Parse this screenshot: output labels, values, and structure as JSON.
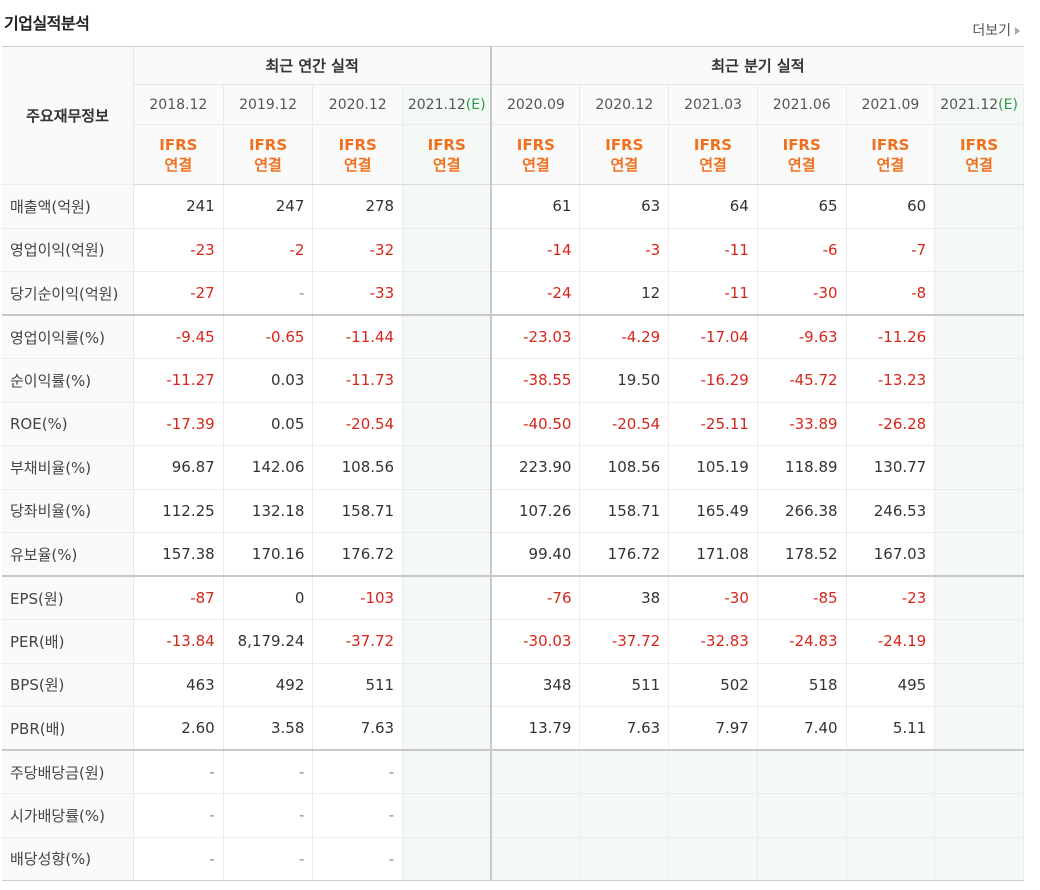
{
  "title": "기업실적분석",
  "more_label": "더보기",
  "headers": {
    "row_label": "주요재무정보",
    "annual": "최근 연간 실적",
    "quarterly": "최근 분기 실적",
    "annual_periods": [
      "2018.12",
      "2019.12",
      "2020.12",
      "2021.12"
    ],
    "quarterly_periods": [
      "2020.09",
      "2020.12",
      "2021.03",
      "2021.06",
      "2021.09",
      "2021.12"
    ],
    "estimate_mark": "(E)",
    "ifrs_line1": "IFRS",
    "ifrs_line2": "연결"
  },
  "rows": [
    {
      "label": "매출액(억원)",
      "annual": [
        "241",
        "247",
        "278",
        ""
      ],
      "quarterly": [
        "61",
        "63",
        "64",
        "65",
        "60",
        ""
      ]
    },
    {
      "label": "영업이익(억원)",
      "annual": [
        "-23",
        "-2",
        "-32",
        ""
      ],
      "quarterly": [
        "-14",
        "-3",
        "-11",
        "-6",
        "-7",
        ""
      ]
    },
    {
      "label": "당기순이익(억원)",
      "annual": [
        "-27",
        "-",
        "-33",
        ""
      ],
      "quarterly": [
        "-24",
        "12",
        "-11",
        "-30",
        "-8",
        ""
      ]
    },
    {
      "label": "영업이익률(%)",
      "annual": [
        "-9.45",
        "-0.65",
        "-11.44",
        ""
      ],
      "quarterly": [
        "-23.03",
        "-4.29",
        "-17.04",
        "-9.63",
        "-11.26",
        ""
      ]
    },
    {
      "label": "순이익률(%)",
      "annual": [
        "-11.27",
        "0.03",
        "-11.73",
        ""
      ],
      "quarterly": [
        "-38.55",
        "19.50",
        "-16.29",
        "-45.72",
        "-13.23",
        ""
      ]
    },
    {
      "label": "ROE(%)",
      "annual": [
        "-17.39",
        "0.05",
        "-20.54",
        ""
      ],
      "quarterly": [
        "-40.50",
        "-20.54",
        "-25.11",
        "-33.89",
        "-26.28",
        ""
      ]
    },
    {
      "label": "부채비율(%)",
      "annual": [
        "96.87",
        "142.06",
        "108.56",
        ""
      ],
      "quarterly": [
        "223.90",
        "108.56",
        "105.19",
        "118.89",
        "130.77",
        ""
      ]
    },
    {
      "label": "당좌비율(%)",
      "annual": [
        "112.25",
        "132.18",
        "158.71",
        ""
      ],
      "quarterly": [
        "107.26",
        "158.71",
        "165.49",
        "266.38",
        "246.53",
        ""
      ]
    },
    {
      "label": "유보율(%)",
      "annual": [
        "157.38",
        "170.16",
        "176.72",
        ""
      ],
      "quarterly": [
        "99.40",
        "176.72",
        "171.08",
        "178.52",
        "167.03",
        ""
      ]
    },
    {
      "label": "EPS(원)",
      "annual": [
        "-87",
        "0",
        "-103",
        ""
      ],
      "quarterly": [
        "-76",
        "38",
        "-30",
        "-85",
        "-23",
        ""
      ]
    },
    {
      "label": "PER(배)",
      "annual": [
        "-13.84",
        "8,179.24",
        "-37.72",
        ""
      ],
      "quarterly": [
        "-30.03",
        "-37.72",
        "-32.83",
        "-24.83",
        "-24.19",
        ""
      ]
    },
    {
      "label": "BPS(원)",
      "annual": [
        "463",
        "492",
        "511",
        ""
      ],
      "quarterly": [
        "348",
        "511",
        "502",
        "518",
        "495",
        ""
      ]
    },
    {
      "label": "PBR(배)",
      "annual": [
        "2.60",
        "3.58",
        "7.63",
        ""
      ],
      "quarterly": [
        "13.79",
        "7.63",
        "7.97",
        "7.40",
        "5.11",
        ""
      ]
    },
    {
      "label": "주당배당금(원)",
      "annual": [
        "-",
        "-",
        "-",
        ""
      ],
      "quarterly": [
        "",
        "",
        "",
        "",
        "",
        ""
      ]
    },
    {
      "label": "시가배당률(%)",
      "annual": [
        "-",
        "-",
        "-",
        ""
      ],
      "quarterly": [
        "",
        "",
        "",
        "",
        "",
        ""
      ]
    },
    {
      "label": "배당성향(%)",
      "annual": [
        "-",
        "-",
        "-",
        ""
      ],
      "quarterly": [
        "",
        "",
        "",
        "",
        "",
        ""
      ]
    }
  ],
  "colors": {
    "negative": "#d6261b",
    "ifrs": "#f07020",
    "estimate": "#2c9a4a"
  }
}
